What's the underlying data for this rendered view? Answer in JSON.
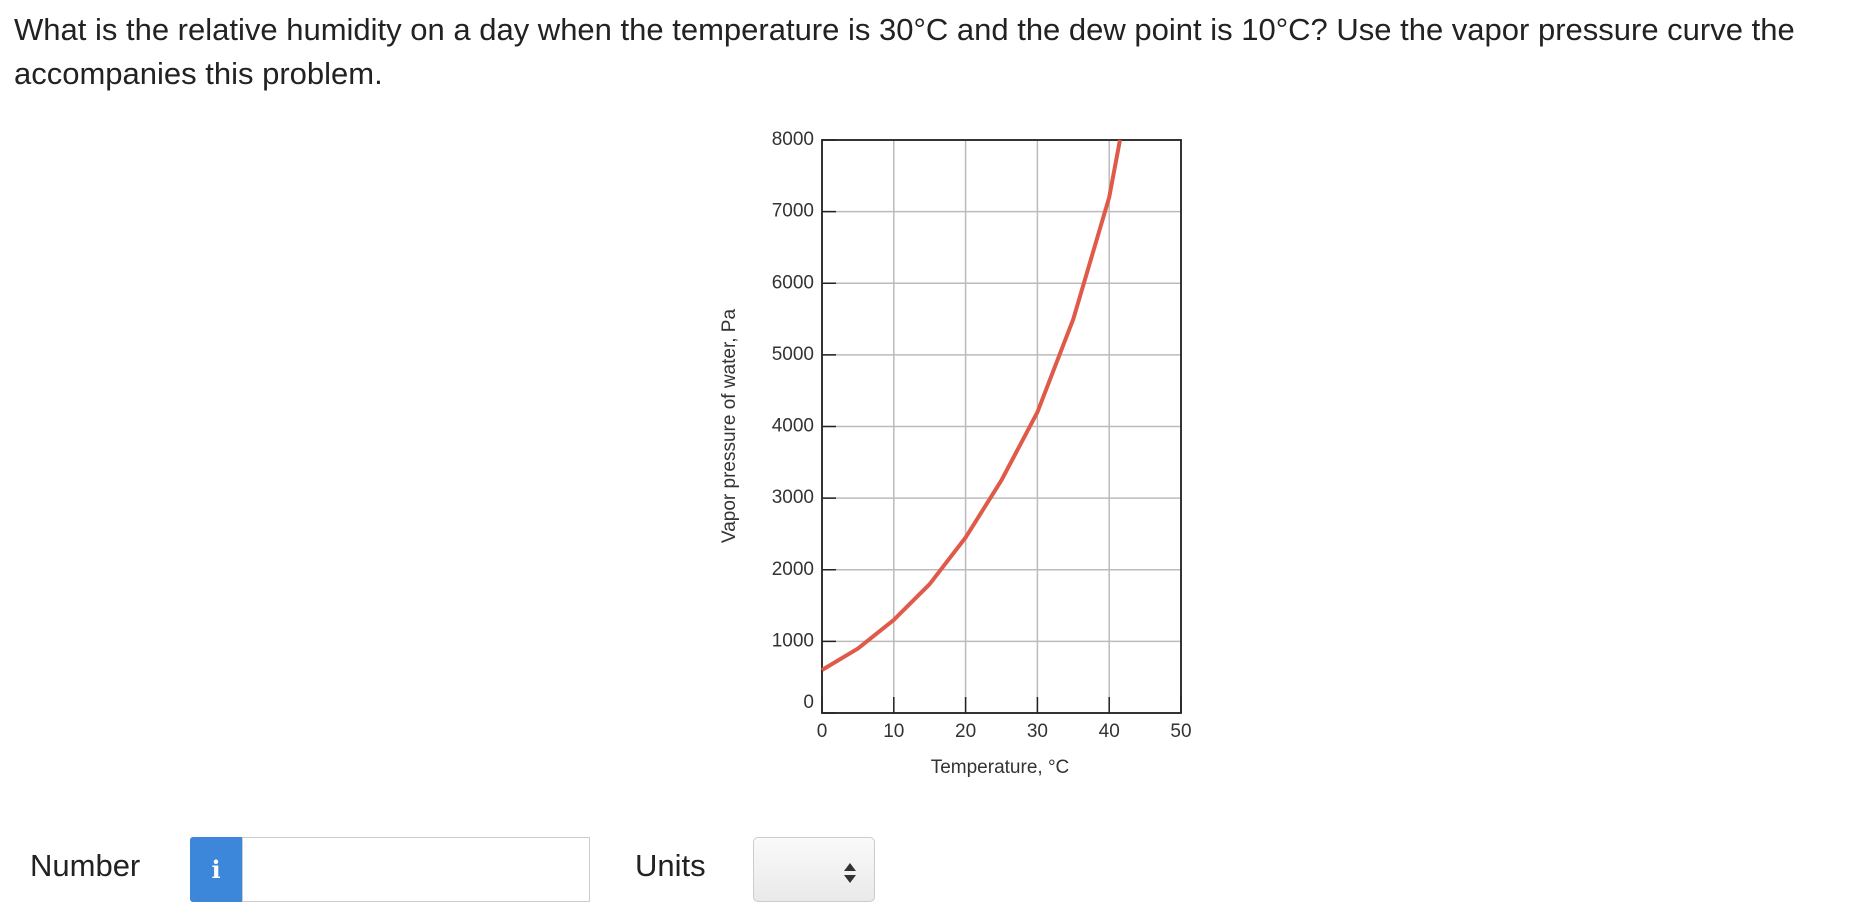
{
  "question": "What is the relative humidity on a day when the temperature is 30°C and the dew point is 10°C? Use the vapor pressure curve the accompanies this problem.",
  "chart_data": {
    "type": "line",
    "x_label": "Temperature, °C",
    "y_label": "Vapor pressure of water, Pa",
    "x": [
      0,
      5,
      10,
      15,
      20,
      25,
      30,
      35,
      40,
      41.5
    ],
    "series": [
      {
        "name": "Vapor pressure",
        "color": "#e05a4a",
        "values": [
          600,
          900,
          1300,
          1800,
          2450,
          3250,
          4200,
          5500,
          7200,
          8000
        ]
      }
    ],
    "xlim": [
      0,
      50
    ],
    "xticks": [
      0,
      10,
      20,
      30,
      40,
      50
    ],
    "ylim": [
      0,
      8000
    ],
    "yticks": [
      0,
      1000,
      2000,
      3000,
      4000,
      5000,
      6000,
      7000,
      8000
    ],
    "grid": true
  },
  "form": {
    "number_label": "Number",
    "info": "i",
    "units_label": "Units"
  }
}
